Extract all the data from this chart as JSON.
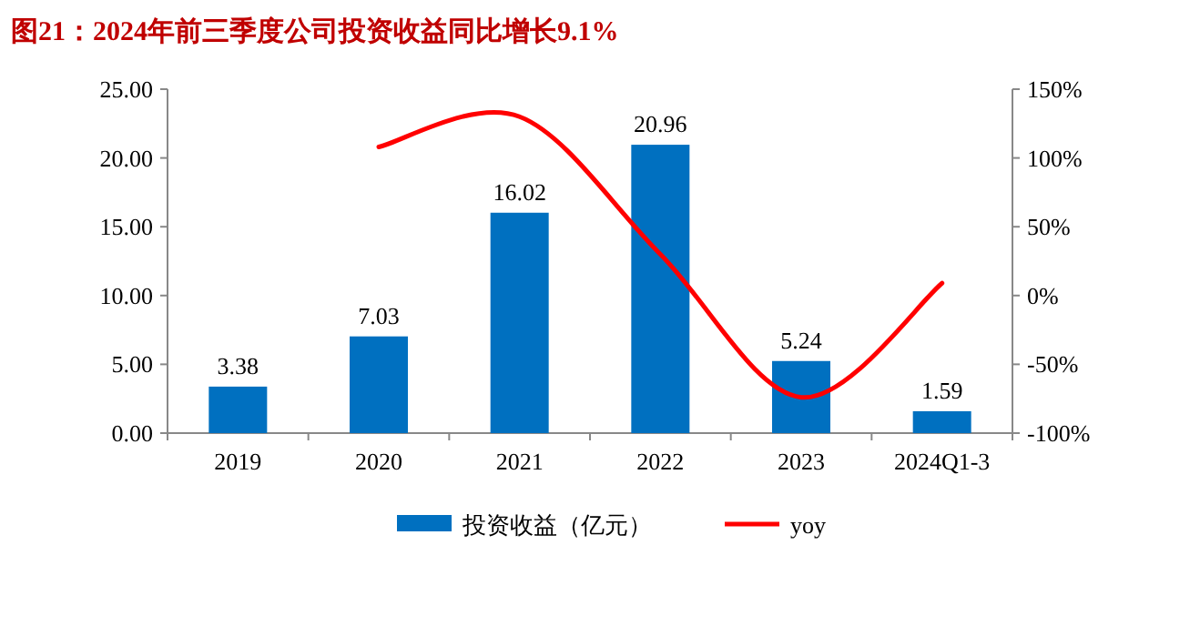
{
  "chart_data": {
    "type": "bar",
    "title": "图21：2024年前三季度公司投资收益同比增长9.1%",
    "categories": [
      "2019",
      "2020",
      "2021",
      "2022",
      "2023",
      "2024Q1-3"
    ],
    "series": [
      {
        "name": "投资收益（亿元）",
        "color": "#0070c0",
        "values": [
          3.38,
          7.03,
          16.02,
          20.96,
          5.24,
          1.59
        ],
        "value_labels": [
          "3.38",
          "7.03",
          "16.02",
          "20.96",
          "5.24",
          "1.59"
        ]
      },
      {
        "name": "yoy",
        "type": "line",
        "axis": "y2",
        "color": "#ff0000",
        "values": [
          null,
          108,
          130,
          30,
          -74,
          9
        ]
      }
    ],
    "ylim": [
      0,
      25
    ],
    "yticks": [
      {
        "value": 0,
        "label": "0.00"
      },
      {
        "value": 5,
        "label": "5.00"
      },
      {
        "value": 10,
        "label": "10.00"
      },
      {
        "value": 15,
        "label": "15.00"
      },
      {
        "value": 20,
        "label": "20.00"
      },
      {
        "value": 25,
        "label": "25.00"
      }
    ],
    "y2lim": [
      -100,
      150
    ],
    "y2ticks": [
      {
        "value": -100,
        "label": "-100%"
      },
      {
        "value": -50,
        "label": "-50%"
      },
      {
        "value": 0,
        "label": "0%"
      },
      {
        "value": 50,
        "label": "50%"
      },
      {
        "value": 100,
        "label": "100%"
      },
      {
        "value": 150,
        "label": "150%"
      }
    ],
    "legend": "bottom"
  }
}
